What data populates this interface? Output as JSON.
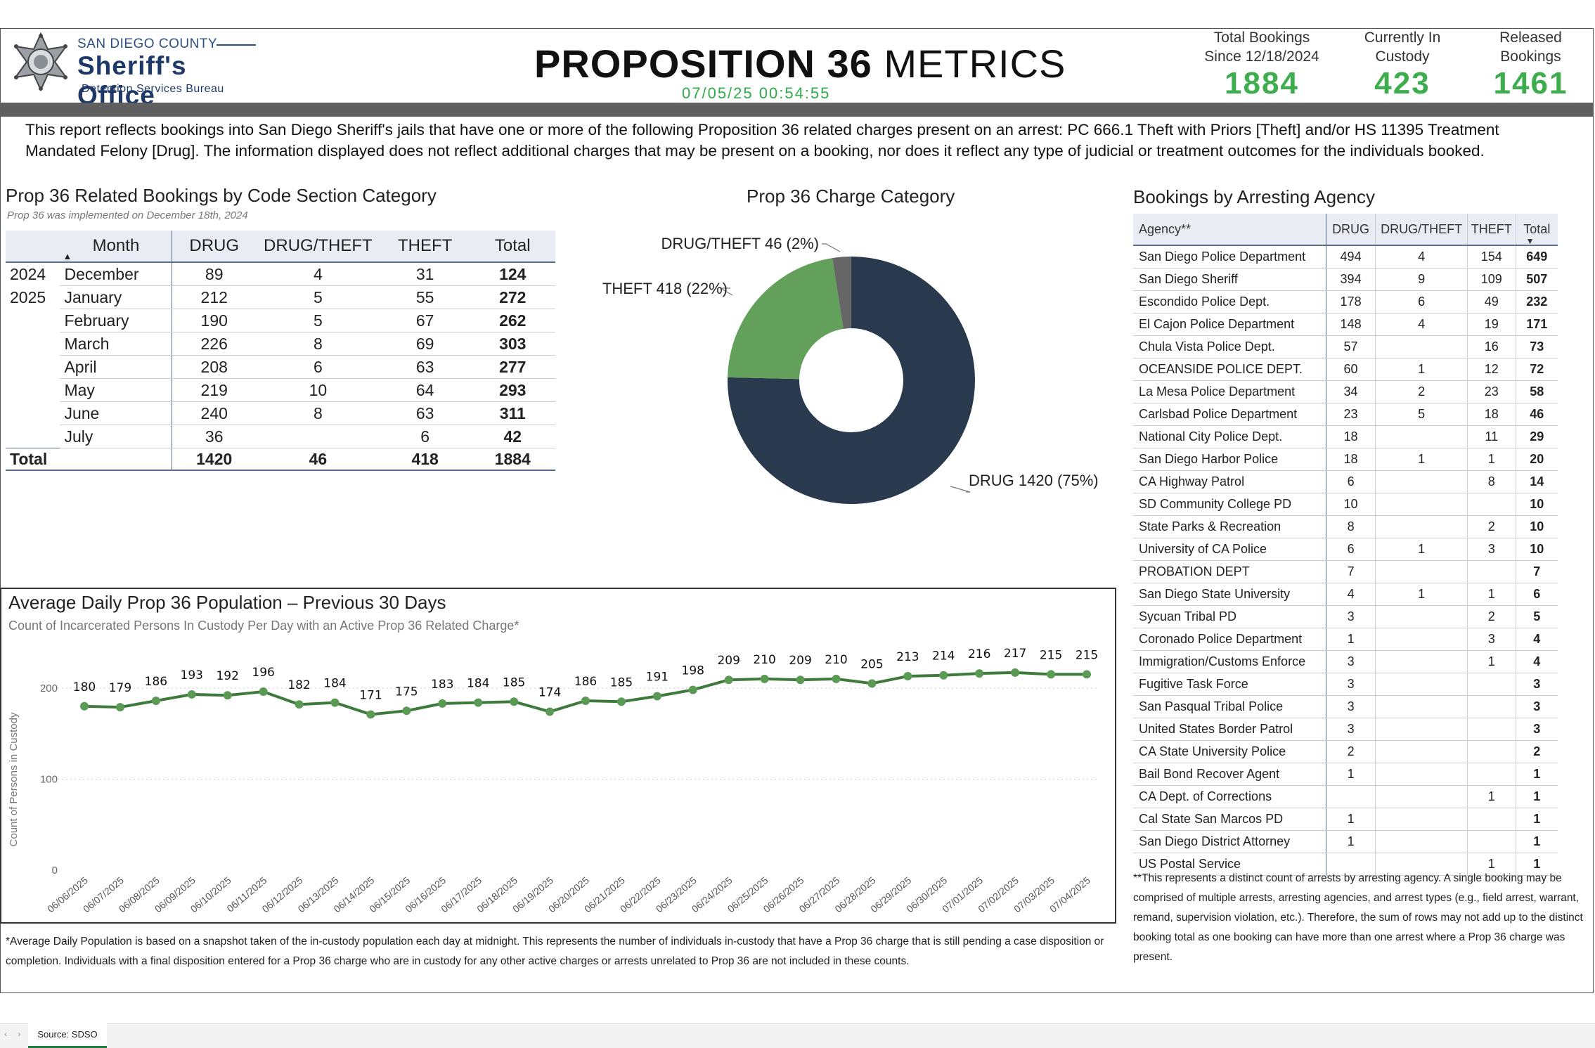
{
  "header": {
    "logo_top": "SAN DIEGO COUNTY",
    "logo_main": "Sheriff's Office",
    "logo_sub": "Detention Services Bureau",
    "title_bold": "PROPOSITION 36",
    "title_light": " METRICS",
    "timestamp": "07/05/25 00:54:55",
    "kpis": [
      {
        "label1": "Total Bookings",
        "label2": "Since 12/18/2024",
        "value": "1884"
      },
      {
        "label1": "Currently In",
        "label2": "Custody",
        "value": "423"
      },
      {
        "label1": "Released",
        "label2": "Bookings",
        "value": "1461"
      }
    ]
  },
  "intro": "This report reflects bookings into San Diego Sheriff's jails that have one or more of the following Proposition 36 related charges present on an arrest: PC 666.1 Theft with Priors [Theft] and/or HS 11395 Treatment Mandated Felony [Drug]. The information displayed does not reflect additional charges that may be present on a booking, nor does it reflect any type of judicial or treatment outcomes for the individuals booked.",
  "code_table": {
    "title": "Prop 36 Related Bookings by Code Section Category",
    "subtitle": "Prop 36 was implemented on December 18th, 2024",
    "columns": [
      "Month",
      "DRUG",
      "DRUG/THEFT",
      "THEFT",
      "Total"
    ],
    "rows": [
      {
        "year": "2024",
        "month": "December",
        "drug": "89",
        "drugtheft": "4",
        "theft": "31",
        "total": "124"
      },
      {
        "year": "2025",
        "month": "January",
        "drug": "212",
        "drugtheft": "5",
        "theft": "55",
        "total": "272"
      },
      {
        "year": "",
        "month": "February",
        "drug": "190",
        "drugtheft": "5",
        "theft": "67",
        "total": "262"
      },
      {
        "year": "",
        "month": "March",
        "drug": "226",
        "drugtheft": "8",
        "theft": "69",
        "total": "303"
      },
      {
        "year": "",
        "month": "April",
        "drug": "208",
        "drugtheft": "6",
        "theft": "63",
        "total": "277"
      },
      {
        "year": "",
        "month": "May",
        "drug": "219",
        "drugtheft": "10",
        "theft": "64",
        "total": "293"
      },
      {
        "year": "",
        "month": "June",
        "drug": "240",
        "drugtheft": "8",
        "theft": "63",
        "total": "311"
      },
      {
        "year": "",
        "month": "July",
        "drug": "36",
        "drugtheft": "",
        "theft": "6",
        "total": "42"
      }
    ],
    "total": {
      "label": "Total",
      "drug": "1420",
      "drugtheft": "46",
      "theft": "418",
      "total": "1884"
    }
  },
  "chart_data": [
    {
      "type": "pie",
      "title": "Prop 36 Charge Category",
      "donut": true,
      "slices": [
        {
          "label": "DRUG",
          "value": 1420,
          "pct": "75%",
          "text": "DRUG 1420 (75%)",
          "color": "#2a3a4e"
        },
        {
          "label": "THEFT",
          "value": 418,
          "pct": "22%",
          "text": "THEFT 418 (22%)",
          "color": "#62a05b"
        },
        {
          "label": "DRUG/THEFT",
          "value": 46,
          "pct": "2%",
          "text": "DRUG/THEFT 46 (2%)",
          "color": "#666666"
        }
      ]
    },
    {
      "type": "line",
      "title": "Average Daily Prop 36 Population – Previous 30 Days",
      "subtitle": "Count of Incarcerated Persons In Custody Per Day with an Active Prop 36 Related Charge*",
      "ylabel": "Count of Persons in Custody",
      "xlabel": "",
      "ylim": [
        0,
        230
      ],
      "yticks": [
        0,
        100,
        200
      ],
      "grid": true,
      "color": "#3e7a3c",
      "x": [
        "06/06/2025",
        "06/07/2025",
        "06/08/2025",
        "06/09/2025",
        "06/10/2025",
        "06/11/2025",
        "06/12/2025",
        "06/13/2025",
        "06/14/2025",
        "06/15/2025",
        "06/16/2025",
        "06/17/2025",
        "06/18/2025",
        "06/19/2025",
        "06/20/2025",
        "06/21/2025",
        "06/22/2025",
        "06/23/2025",
        "06/24/2025",
        "06/25/2025",
        "06/26/2025",
        "06/27/2025",
        "06/28/2025",
        "06/29/2025",
        "06/30/2025",
        "07/01/2025",
        "07/02/2025",
        "07/03/2025",
        "07/04/2025"
      ],
      "values": [
        180,
        179,
        186,
        193,
        192,
        196,
        182,
        184,
        171,
        175,
        183,
        184,
        185,
        174,
        186,
        185,
        191,
        198,
        209,
        210,
        209,
        210,
        205,
        213,
        214,
        216,
        217,
        215,
        215
      ]
    }
  ],
  "line_footnote": "*Average Daily Population is based on a snapshot taken of the in-custody population each day at midnight. This represents the number of individuals in-custody that have a Prop 36 charge that is still pending a case disposition or completion. Individuals with a final disposition entered for a Prop 36 charge who are in custody for any other active charges or arrests unrelated to Prop 36 are not included in these counts.",
  "agency_table": {
    "title": "Bookings by Arresting Agency",
    "columns": [
      "Agency**",
      "DRUG",
      "DRUG/THEFT",
      "THEFT",
      "Total"
    ],
    "rows": [
      {
        "agency": "San Diego Police Department",
        "drug": "494",
        "drugtheft": "4",
        "theft": "154",
        "total": "649"
      },
      {
        "agency": "San Diego Sheriff",
        "drug": "394",
        "drugtheft": "9",
        "theft": "109",
        "total": "507"
      },
      {
        "agency": "Escondido Police Dept.",
        "drug": "178",
        "drugtheft": "6",
        "theft": "49",
        "total": "232"
      },
      {
        "agency": "El Cajon Police Department",
        "drug": "148",
        "drugtheft": "4",
        "theft": "19",
        "total": "171"
      },
      {
        "agency": "Chula Vista Police Dept.",
        "drug": "57",
        "drugtheft": "",
        "theft": "16",
        "total": "73"
      },
      {
        "agency": "OCEANSIDE POLICE DEPT.",
        "drug": "60",
        "drugtheft": "1",
        "theft": "12",
        "total": "72"
      },
      {
        "agency": "La Mesa Police Department",
        "drug": "34",
        "drugtheft": "2",
        "theft": "23",
        "total": "58"
      },
      {
        "agency": "Carlsbad Police Department",
        "drug": "23",
        "drugtheft": "5",
        "theft": "18",
        "total": "46"
      },
      {
        "agency": "National City Police Dept.",
        "drug": "18",
        "drugtheft": "",
        "theft": "11",
        "total": "29"
      },
      {
        "agency": "San Diego Harbor Police",
        "drug": "18",
        "drugtheft": "1",
        "theft": "1",
        "total": "20"
      },
      {
        "agency": "CA Highway Patrol",
        "drug": "6",
        "drugtheft": "",
        "theft": "8",
        "total": "14"
      },
      {
        "agency": "SD Community College PD",
        "drug": "10",
        "drugtheft": "",
        "theft": "",
        "total": "10"
      },
      {
        "agency": "State Parks & Recreation",
        "drug": "8",
        "drugtheft": "",
        "theft": "2",
        "total": "10"
      },
      {
        "agency": "University of CA Police",
        "drug": "6",
        "drugtheft": "1",
        "theft": "3",
        "total": "10"
      },
      {
        "agency": "PROBATION DEPT",
        "drug": "7",
        "drugtheft": "",
        "theft": "",
        "total": "7"
      },
      {
        "agency": "San Diego State University",
        "drug": "4",
        "drugtheft": "1",
        "theft": "1",
        "total": "6"
      },
      {
        "agency": "Sycuan Tribal PD",
        "drug": "3",
        "drugtheft": "",
        "theft": "2",
        "total": "5"
      },
      {
        "agency": "Coronado Police Department",
        "drug": "1",
        "drugtheft": "",
        "theft": "3",
        "total": "4"
      },
      {
        "agency": "Immigration/Customs Enforce",
        "drug": "3",
        "drugtheft": "",
        "theft": "1",
        "total": "4"
      },
      {
        "agency": "Fugitive Task Force",
        "drug": "3",
        "drugtheft": "",
        "theft": "",
        "total": "3"
      },
      {
        "agency": "San Pasqual Tribal Police",
        "drug": "3",
        "drugtheft": "",
        "theft": "",
        "total": "3"
      },
      {
        "agency": "United States Border Patrol",
        "drug": "3",
        "drugtheft": "",
        "theft": "",
        "total": "3"
      },
      {
        "agency": "CA State University Police",
        "drug": "2",
        "drugtheft": "",
        "theft": "",
        "total": "2"
      },
      {
        "agency": "Bail Bond Recover Agent",
        "drug": "1",
        "drugtheft": "",
        "theft": "",
        "total": "1"
      },
      {
        "agency": "CA Dept. of Corrections",
        "drug": "",
        "drugtheft": "",
        "theft": "1",
        "total": "1"
      },
      {
        "agency": "Cal State San Marcos PD",
        "drug": "1",
        "drugtheft": "",
        "theft": "",
        "total": "1"
      },
      {
        "agency": "San Diego District Attorney",
        "drug": "1",
        "drugtheft": "",
        "theft": "",
        "total": "1"
      },
      {
        "agency": "US Postal Service",
        "drug": "",
        "drugtheft": "",
        "theft": "1",
        "total": "1"
      }
    ],
    "footnote": "**This represents a distinct count of arrests by arresting agency. A single booking may be comprised of multiple arrests, arresting agencies, and arrest types (e.g., field arrest, warrant, remand, supervision violation, etc.). Therefore, the sum of rows may not add up to the distinct booking total as one booking can have more than one arrest where a Prop 36 charge was present."
  },
  "footer": {
    "sheet_tab": "Source: SDSO",
    "nav": "‹ ›"
  }
}
